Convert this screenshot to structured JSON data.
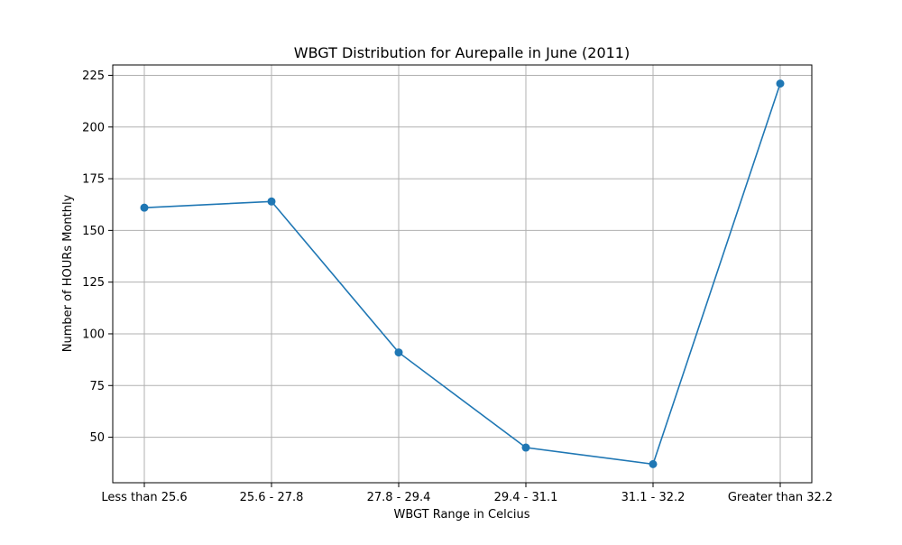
{
  "chart_data": {
    "type": "line",
    "title": "WBGT Distribution for Aurepalle in June (2011)",
    "xlabel": "WBGT Range in Celcius",
    "ylabel": "Number of HOURs Monthly",
    "categories": [
      "Less than 25.6",
      "25.6 - 27.8",
      "27.8 - 29.4",
      "29.4 - 31.1",
      "31.1 - 32.2",
      "Greater than 32.2"
    ],
    "series": [
      {
        "values": [
          161,
          164,
          91,
          45,
          37,
          221
        ],
        "color": "#1f77b4",
        "marker": "circle"
      }
    ],
    "ylim": [
      28,
      230
    ],
    "yticks": [
      50,
      75,
      100,
      125,
      150,
      175,
      200,
      225
    ],
    "grid": true,
    "legend": false
  }
}
